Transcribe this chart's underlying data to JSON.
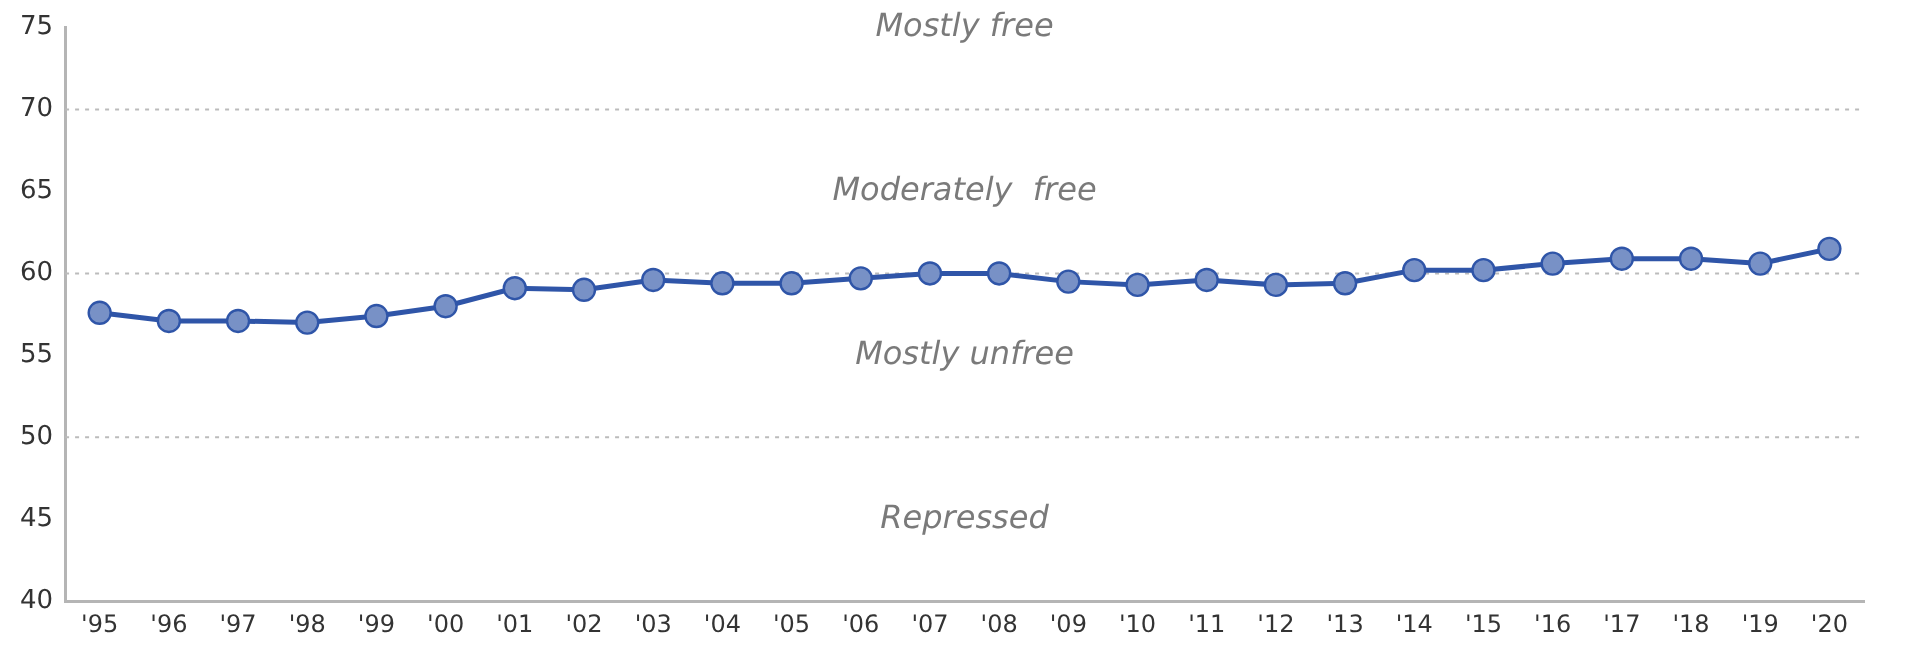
{
  "chart_data": {
    "type": "line",
    "categories": [
      "'95",
      "'96",
      "'97",
      "'98",
      "'99",
      "'00",
      "'01",
      "'02",
      "'03",
      "'04",
      "'05",
      "'06",
      "'07",
      "'08",
      "'09",
      "'10",
      "'11",
      "'12",
      "'13",
      "'14",
      "'15",
      "'16",
      "'17",
      "'18",
      "'19",
      "'20"
    ],
    "series": [
      {
        "color": "#2f55a8",
        "values": [
          57.6,
          57.1,
          57.1,
          57.0,
          57.4,
          58.0,
          59.1,
          59.0,
          59.6,
          59.4,
          59.4,
          59.7,
          60.0,
          60.0,
          59.5,
          59.3,
          59.6,
          59.3,
          59.4,
          60.2,
          60.2,
          60.6,
          60.9,
          60.9,
          60.6,
          61.5
        ]
      }
    ],
    "ylim": [
      40,
      75
    ],
    "yticks": [
      40,
      45,
      50,
      55,
      60,
      65,
      70,
      75
    ],
    "grid": false,
    "legend": false,
    "marker": "circle",
    "line_style": "solid",
    "ref_lines": [
      {
        "axis": "y",
        "value": 50,
        "color": "#bbbbbb",
        "line_style": "dotted"
      },
      {
        "axis": "y",
        "value": 60,
        "color": "#bbbbbb",
        "line_style": "dotted"
      },
      {
        "axis": "y",
        "value": 70,
        "color": "#bbbbbb",
        "line_style": "dotted"
      }
    ],
    "annotations": [
      "Mostly free",
      "Moderately  free",
      "Mostly unfree",
      "Repressed"
    ]
  }
}
